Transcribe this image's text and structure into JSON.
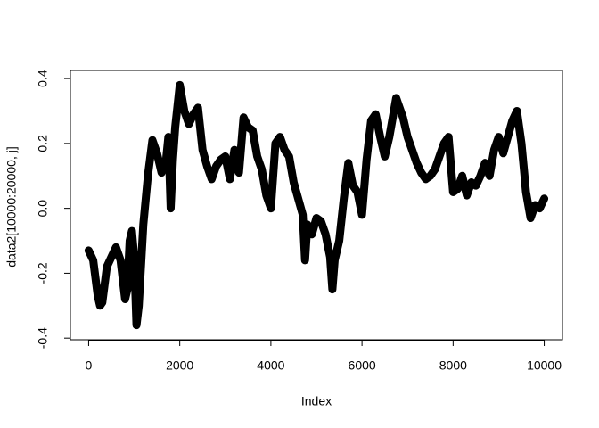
{
  "chart_data": {
    "type": "line",
    "xlabel": "Index",
    "ylabel": "data2[10000:20000, j]",
    "x": [
      0,
      100,
      200,
      250,
      300,
      400,
      500,
      600,
      700,
      800,
      850,
      900,
      950,
      1000,
      1050,
      1100,
      1200,
      1300,
      1400,
      1500,
      1600,
      1700,
      1750,
      1800,
      1850,
      1900,
      2000,
      2100,
      2200,
      2300,
      2400,
      2500,
      2600,
      2700,
      2800,
      2900,
      3000,
      3100,
      3200,
      3300,
      3400,
      3500,
      3600,
      3700,
      3800,
      3900,
      4000,
      4100,
      4200,
      4300,
      4400,
      4500,
      4600,
      4700,
      4750,
      4800,
      4900,
      5000,
      5100,
      5200,
      5300,
      5350,
      5400,
      5500,
      5600,
      5700,
      5800,
      5900,
      6000,
      6100,
      6200,
      6300,
      6400,
      6500,
      6600,
      6700,
      6750,
      6800,
      6900,
      7000,
      7100,
      7200,
      7300,
      7400,
      7500,
      7600,
      7700,
      7800,
      7900,
      8000,
      8100,
      8200,
      8300,
      8400,
      8500,
      8600,
      8700,
      8800,
      8900,
      9000,
      9100,
      9200,
      9300,
      9400,
      9500,
      9600,
      9700,
      9800,
      9900,
      10000
    ],
    "series": [
      {
        "color": "#000000",
        "values": [
          -0.13,
          -0.16,
          -0.27,
          -0.3,
          -0.29,
          -0.18,
          -0.15,
          -0.12,
          -0.16,
          -0.28,
          -0.25,
          -0.1,
          -0.07,
          -0.15,
          -0.36,
          -0.3,
          -0.05,
          0.1,
          0.21,
          0.17,
          0.11,
          0.15,
          0.22,
          0.0,
          0.15,
          0.25,
          0.38,
          0.3,
          0.26,
          0.29,
          0.31,
          0.18,
          0.13,
          0.09,
          0.13,
          0.15,
          0.16,
          0.09,
          0.18,
          0.11,
          0.28,
          0.25,
          0.24,
          0.16,
          0.12,
          0.04,
          0.0,
          0.2,
          0.22,
          0.18,
          0.16,
          0.08,
          0.03,
          -0.02,
          -0.16,
          -0.05,
          -0.08,
          -0.03,
          -0.04,
          -0.08,
          -0.15,
          -0.25,
          -0.16,
          -0.1,
          0.03,
          0.14,
          0.07,
          0.05,
          -0.02,
          0.15,
          0.27,
          0.29,
          0.22,
          0.16,
          0.22,
          0.3,
          0.34,
          0.32,
          0.28,
          0.22,
          0.18,
          0.14,
          0.11,
          0.09,
          0.1,
          0.12,
          0.16,
          0.2,
          0.22,
          0.05,
          0.06,
          0.1,
          0.04,
          0.08,
          0.07,
          0.1,
          0.14,
          0.1,
          0.18,
          0.22,
          0.17,
          0.22,
          0.27,
          0.3,
          0.2,
          0.05,
          -0.03,
          0.01,
          0.0,
          0.03
        ]
      }
    ],
    "xlim": [
      -400,
      10400
    ],
    "ylim": [
      -0.405,
      0.425
    ],
    "xticks": [
      0,
      2000,
      4000,
      6000,
      8000,
      10000
    ],
    "yticks": [
      -0.4,
      -0.2,
      {
        "value": 0,
        "label": "0.0"
      },
      0.2,
      0.4
    ]
  }
}
